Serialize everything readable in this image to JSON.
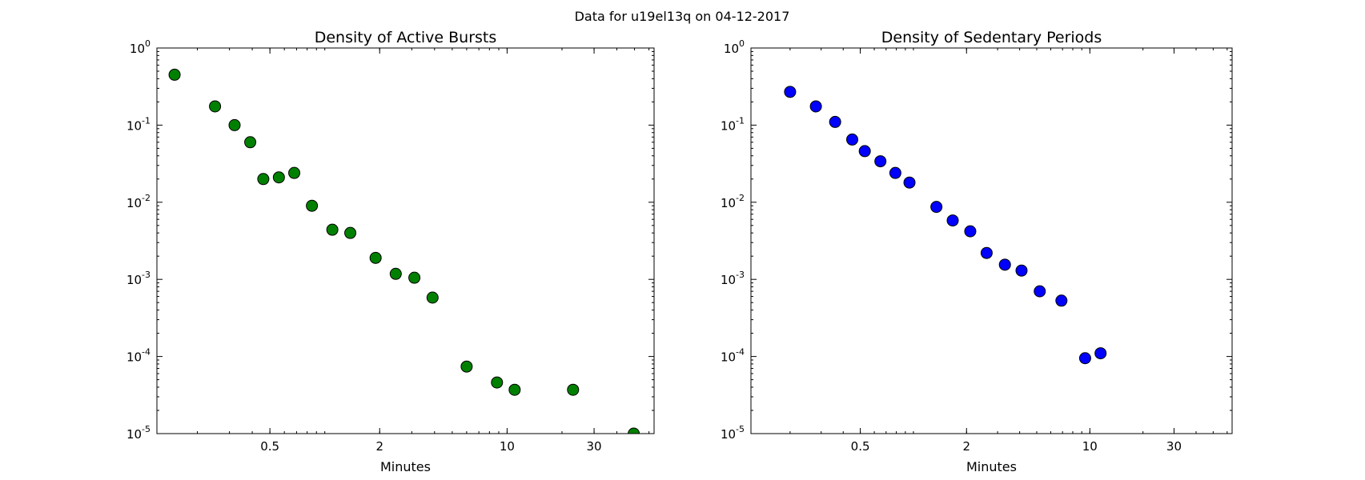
{
  "figure": {
    "suptitle": "Data for u19el13q on 04-12-2017"
  },
  "chart_data": [
    {
      "type": "scatter",
      "title": "Density of Active Bursts",
      "xlabel": "Minutes",
      "ylabel": "",
      "xscale": "log",
      "yscale": "log",
      "xlim": [
        0.12,
        64
      ],
      "ylim": [
        1e-05,
        1
      ],
      "xticks": [
        0.5,
        2,
        10,
        30
      ],
      "xtick_labels": [
        "0.5",
        "2",
        "10",
        "30"
      ],
      "yticks": [
        1,
        0.1,
        0.01,
        0.001,
        0.0001,
        1e-05
      ],
      "ytick_exponents": [
        "0",
        "-1",
        "-2",
        "-3",
        "-4",
        "-5"
      ],
      "grid": false,
      "marker_color": "#008000",
      "x": [
        0.15,
        0.25,
        0.32,
        0.39,
        0.46,
        0.56,
        0.68,
        0.85,
        1.1,
        1.38,
        1.9,
        2.45,
        3.1,
        3.9,
        6.0,
        8.8,
        11.0,
        23.0,
        49.5
      ],
      "y": [
        0.45,
        0.175,
        0.1,
        0.06,
        0.02,
        0.021,
        0.024,
        0.009,
        0.0044,
        0.004,
        0.0019,
        0.00118,
        0.00105,
        0.00058,
        7.4e-05,
        4.6e-05,
        3.7e-05,
        3.7e-05,
        1e-05
      ]
    },
    {
      "type": "scatter",
      "title": "Density of Sedentary Periods",
      "xlabel": "Minutes",
      "ylabel": "",
      "xscale": "log",
      "yscale": "log",
      "xlim": [
        0.12,
        64
      ],
      "ylim": [
        1e-05,
        1
      ],
      "xticks": [
        0.5,
        2,
        10,
        30
      ],
      "xtick_labels": [
        "0.5",
        "2",
        "10",
        "30"
      ],
      "yticks": [
        1,
        0.1,
        0.01,
        0.001,
        0.0001,
        1e-05
      ],
      "ytick_exponents": [
        "0",
        "-1",
        "-2",
        "-3",
        "-4",
        "-5"
      ],
      "grid": false,
      "marker_color": "#0000ff",
      "x": [
        0.2,
        0.28,
        0.36,
        0.45,
        0.53,
        0.65,
        0.79,
        0.95,
        1.35,
        1.67,
        2.1,
        2.6,
        3.3,
        4.1,
        5.2,
        6.9,
        9.4,
        11.5
      ],
      "y": [
        0.27,
        0.175,
        0.11,
        0.065,
        0.046,
        0.034,
        0.024,
        0.018,
        0.0087,
        0.0058,
        0.0042,
        0.0022,
        0.00155,
        0.0013,
        0.0007,
        0.00053,
        9.5e-05,
        0.00011
      ]
    }
  ]
}
